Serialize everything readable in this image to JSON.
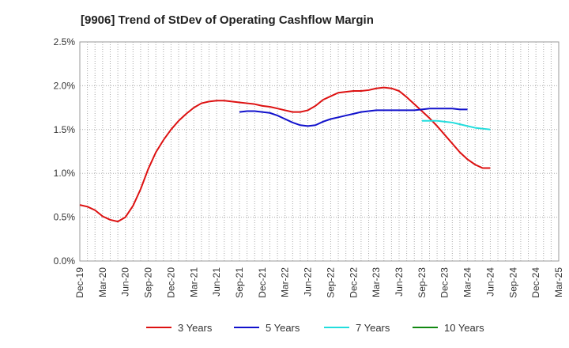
{
  "chart_data": {
    "type": "line",
    "title": "[9906]  Trend of StDev of Operating Cashflow Margin",
    "xlabel": "",
    "ylabel": "",
    "ylim": [
      0,
      2.5
    ],
    "yticks": [
      "0.0%",
      "0.5%",
      "1.0%",
      "1.5%",
      "2.0%",
      "2.5%"
    ],
    "xticks": [
      "Dec-19",
      "Mar-20",
      "Jun-20",
      "Sep-20",
      "Dec-20",
      "Mar-21",
      "Jun-21",
      "Sep-21",
      "Dec-21",
      "Mar-22",
      "Jun-22",
      "Sep-22",
      "Dec-22",
      "Mar-23",
      "Jun-23",
      "Sep-23",
      "Dec-23",
      "Mar-24",
      "Jun-24",
      "Sep-24",
      "Dec-24",
      "Mar-25"
    ],
    "grid": true,
    "legend_position": "bottom",
    "series": [
      {
        "name": "3 Years",
        "color": "#dd1111",
        "start_index": 0,
        "values": [
          0.64,
          0.62,
          0.58,
          0.51,
          0.47,
          0.45,
          0.5,
          0.63,
          0.82,
          1.05,
          1.24,
          1.38,
          1.5,
          1.6,
          1.68,
          1.75,
          1.8,
          1.82,
          1.83,
          1.83,
          1.82,
          1.81,
          1.8,
          1.79,
          1.77,
          1.76,
          1.74,
          1.72,
          1.7,
          1.7,
          1.72,
          1.77,
          1.84,
          1.88,
          1.92,
          1.93,
          1.94,
          1.94,
          1.95,
          1.97,
          1.98,
          1.97,
          1.94,
          1.87,
          1.79,
          1.71,
          1.63,
          1.54,
          1.44,
          1.34,
          1.24,
          1.16,
          1.1,
          1.06,
          1.06
        ]
      },
      {
        "name": "5 Years",
        "color": "#1111cc",
        "start_index": 21,
        "values": [
          1.7,
          1.71,
          1.71,
          1.7,
          1.69,
          1.66,
          1.62,
          1.58,
          1.55,
          1.54,
          1.55,
          1.59,
          1.62,
          1.64,
          1.66,
          1.68,
          1.7,
          1.71,
          1.72,
          1.72,
          1.72,
          1.72,
          1.72,
          1.72,
          1.73,
          1.74,
          1.74,
          1.74,
          1.74,
          1.73,
          1.73
        ]
      },
      {
        "name": "7 Years",
        "color": "#22dddd",
        "start_index": 45,
        "values": [
          1.6,
          1.6,
          1.6,
          1.59,
          1.58,
          1.56,
          1.54,
          1.52,
          1.51,
          1.5
        ]
      },
      {
        "name": "10 Years",
        "color": "#118811",
        "start_index": 0,
        "values": []
      }
    ]
  }
}
